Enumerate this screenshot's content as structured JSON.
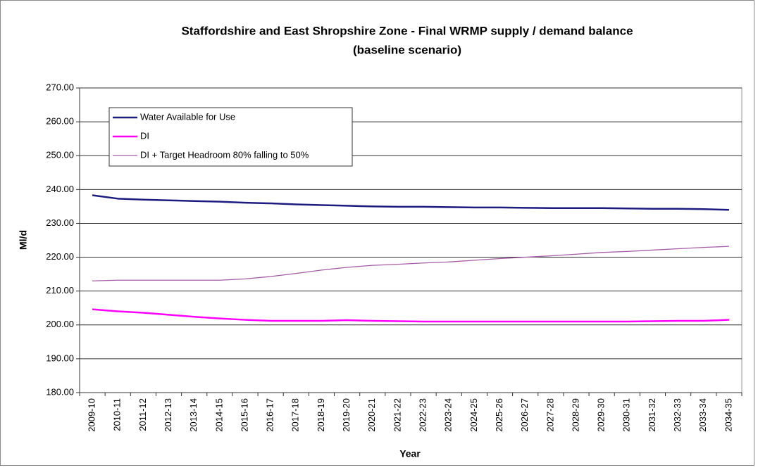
{
  "chart_data": {
    "type": "line",
    "title": "Staffordshire and East Shropshire Zone - Final WRMP supply / demand balance",
    "subtitle": "(baseline scenario)",
    "x_label": "Year",
    "y_label": "Ml/d",
    "categories": [
      "2009-10",
      "2010-11",
      "2011-12",
      "2012-13",
      "2013-14",
      "2014-15",
      "2015-16",
      "2016-17",
      "2017-18",
      "2018-19",
      "2019-20",
      "2020-21",
      "2021-22",
      "2022-23",
      "2023-24",
      "2024-25",
      "2025-26",
      "2026-27",
      "2027-28",
      "2028-29",
      "2029-30",
      "2030-31",
      "2031-32",
      "2032-33",
      "2033-34",
      "2034-35"
    ],
    "series": [
      {
        "name": "Water Available for Use",
        "color": "#1c1c80",
        "values": [
          238.3,
          237.3,
          237.0,
          236.8,
          236.6,
          236.4,
          236.1,
          235.9,
          235.6,
          235.4,
          235.2,
          235.0,
          234.9,
          234.9,
          234.8,
          234.7,
          234.7,
          234.6,
          234.5,
          234.5,
          234.5,
          234.4,
          234.3,
          234.3,
          234.2,
          234.0
        ]
      },
      {
        "name": "DI",
        "color": "#ff00ff",
        "values": [
          204.6,
          204.0,
          203.6,
          203.0,
          202.4,
          201.9,
          201.5,
          201.2,
          201.2,
          201.2,
          201.4,
          201.2,
          201.1,
          201.0,
          201.0,
          201.0,
          201.0,
          201.0,
          201.0,
          201.0,
          201.0,
          201.0,
          201.1,
          201.2,
          201.2,
          201.5
        ]
      },
      {
        "name": "DI + Target Headroom 80% falling to 50%",
        "color": "#a45ca4",
        "values": [
          213.0,
          213.2,
          213.2,
          213.2,
          213.2,
          213.2,
          213.6,
          214.3,
          215.2,
          216.2,
          217.0,
          217.6,
          217.9,
          218.3,
          218.6,
          219.1,
          219.6,
          220.0,
          220.4,
          220.9,
          221.4,
          221.7,
          222.1,
          222.5,
          222.9,
          223.2
        ]
      }
    ],
    "ylim": [
      180,
      270
    ],
    "yticks": [
      {
        "value": 180,
        "label": "180.00"
      },
      {
        "value": 190,
        "label": "190.00"
      },
      {
        "value": 200,
        "label": "200.00"
      },
      {
        "value": 210,
        "label": "210.00"
      },
      {
        "value": 220,
        "label": "220.00"
      },
      {
        "value": 230,
        "label": "230.00"
      },
      {
        "value": 240,
        "label": "240.00"
      },
      {
        "value": 250,
        "label": "250.00"
      },
      {
        "value": 260,
        "label": "260.00"
      },
      {
        "value": 270,
        "label": "270.00"
      }
    ],
    "grid": true,
    "legend": "top-left"
  }
}
